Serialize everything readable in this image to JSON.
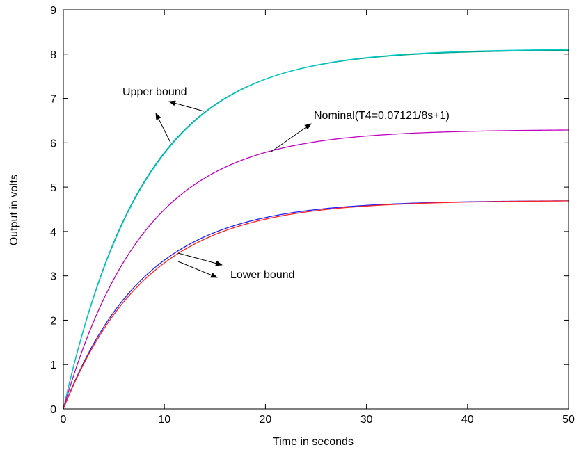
{
  "chart_data": {
    "type": "line",
    "xlabel": "Time in seconds",
    "ylabel": "Output in volts",
    "xlim": [
      0,
      50
    ],
    "ylim": [
      0,
      9
    ],
    "xticks": [
      0,
      10,
      20,
      30,
      40,
      50
    ],
    "yticks": [
      0,
      1,
      2,
      3,
      4,
      5,
      6,
      7,
      8,
      9
    ],
    "grid": false,
    "series": [
      {
        "color": "#00a080",
        "final_value": 8.1,
        "time_constant": 8,
        "x": [
          0,
          5,
          10,
          15,
          20,
          25,
          30,
          35,
          40,
          45,
          50
        ],
        "values": [
          0,
          3.79,
          5.99,
          7.07,
          7.57,
          7.86,
          7.99,
          8.05,
          8.08,
          8.09,
          8.1
        ]
      },
      {
        "color": "#00c8c8",
        "final_value": 8.12,
        "time_constant": 8.1,
        "x": [
          0,
          5,
          10,
          15,
          20,
          25,
          30,
          35,
          40,
          45,
          50
        ],
        "values": [
          0,
          3.75,
          5.97,
          7.06,
          7.57,
          7.86,
          8.0,
          8.07,
          8.1,
          8.11,
          8.12
        ]
      },
      {
        "color": "#c000c0",
        "final_value": 6.3,
        "time_constant": 8,
        "x": [
          0,
          5,
          10,
          15,
          20,
          25,
          30,
          35,
          40,
          45,
          50
        ],
        "values": [
          0,
          2.94,
          4.66,
          5.5,
          5.89,
          6.11,
          6.22,
          6.26,
          6.28,
          6.29,
          6.3
        ]
      },
      {
        "color": "#2020ff",
        "final_value": 4.7,
        "time_constant": 8,
        "x": [
          0,
          5,
          10,
          15,
          20,
          25,
          30,
          35,
          40,
          45,
          50
        ],
        "values": [
          0,
          2.19,
          3.48,
          4.1,
          4.39,
          4.56,
          4.64,
          4.67,
          4.69,
          4.7,
          4.7
        ]
      },
      {
        "color": "#ff2020",
        "final_value": 4.7,
        "time_constant": 8.3,
        "x": [
          0,
          5,
          10,
          15,
          20,
          25,
          30,
          35,
          40,
          45,
          50
        ],
        "values": [
          0,
          2.13,
          3.43,
          4.08,
          4.38,
          4.55,
          4.64,
          4.67,
          4.69,
          4.7,
          4.7
        ]
      }
    ],
    "annotations": [
      {
        "text": "Upper bound"
      },
      {
        "text": "Nominal(T4=0.07121/8s+1)"
      },
      {
        "text": "Lower bound"
      }
    ]
  }
}
